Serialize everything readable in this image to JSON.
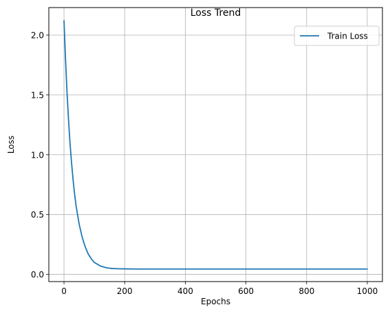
{
  "chart_data": {
    "type": "line",
    "title": "Loss Trend",
    "xlabel": "Epochs",
    "ylabel": "Loss",
    "xlim": [
      -50,
      1050
    ],
    "ylim": [
      -0.06,
      2.23
    ],
    "xticks": [
      0,
      200,
      400,
      600,
      800,
      1000
    ],
    "yticks": [
      0.0,
      0.5,
      1.0,
      1.5,
      2.0
    ],
    "xtick_labels": [
      "0",
      "200",
      "400",
      "600",
      "800",
      "1000"
    ],
    "ytick_labels": [
      "0.0",
      "0.5",
      "1.0",
      "1.5",
      "2.0"
    ],
    "grid": true,
    "legend_position": "top-right",
    "series": [
      {
        "name": "Train Loss",
        "color": "#1f77b4",
        "x": [
          0,
          5,
          10,
          15,
          20,
          25,
          30,
          35,
          40,
          50,
          60,
          70,
          80,
          90,
          100,
          120,
          140,
          160,
          180,
          200,
          250,
          300,
          400,
          500,
          600,
          700,
          800,
          900,
          1000
        ],
        "y": [
          2.12,
          1.8,
          1.52,
          1.29,
          1.09,
          0.93,
          0.79,
          0.67,
          0.57,
          0.42,
          0.31,
          0.23,
          0.17,
          0.13,
          0.1,
          0.07,
          0.055,
          0.049,
          0.047,
          0.046,
          0.045,
          0.045,
          0.045,
          0.045,
          0.045,
          0.045,
          0.045,
          0.045,
          0.045
        ]
      }
    ]
  }
}
